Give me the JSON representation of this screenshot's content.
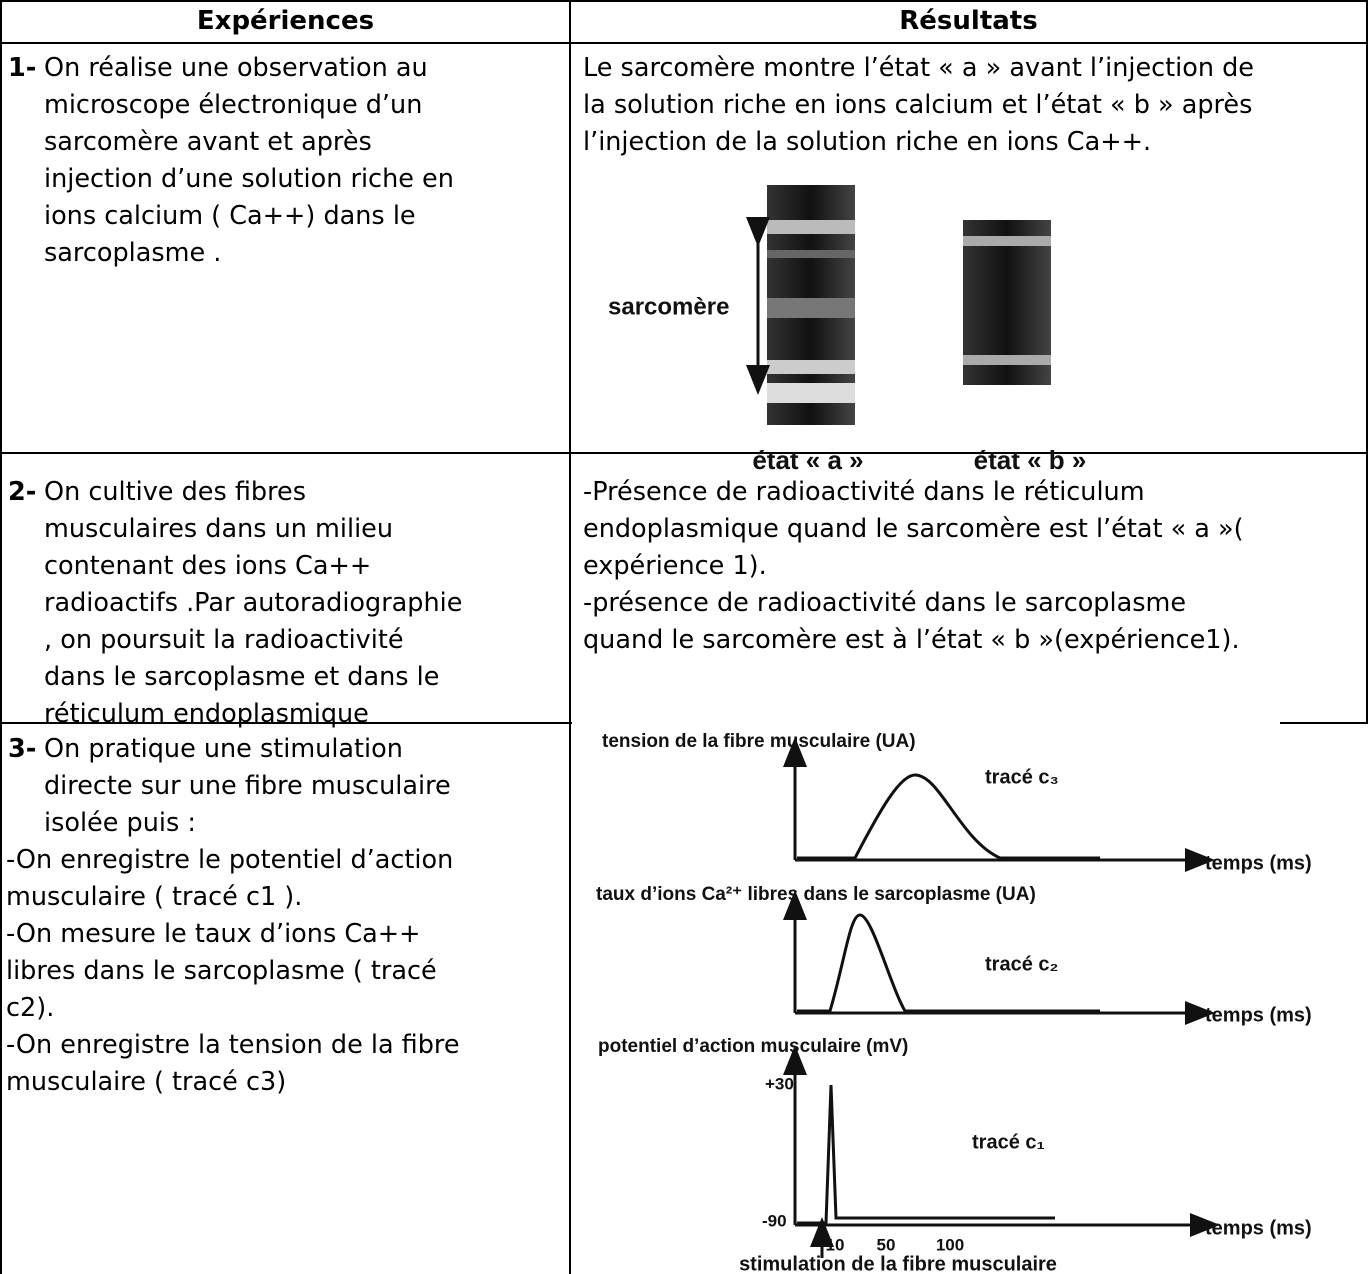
{
  "table": {
    "headers": [
      "Expériences",
      "Résultats"
    ],
    "rows": [
      {
        "experience": {
          "number": "1-",
          "lines": [
            "On réalise une observation au",
            "microscope électronique d’un",
            "sarcomère avant et après",
            "injection d’une solution riche en",
            "ions calcium ( Ca++) dans le",
            "sarcoplasme ."
          ],
          "extra_lines": []
        },
        "result": {
          "lines": [
            "Le sarcomère montre l’état « a » avant l’injection de",
            "la solution riche en ions calcium et l’état « b » après",
            "l’injection de la solution riche en ions Ca++."
          ],
          "figure": {
            "label": "sarcomère",
            "states": [
              "état « a »",
              "état « b »"
            ]
          }
        }
      },
      {
        "experience": {
          "number": "2-",
          "lines": [
            "On cultive des fibres",
            "musculaires dans un milieu",
            "contenant des ions Ca++",
            "radioactifs .Par autoradiographie",
            ", on poursuit la radioactivité",
            "dans le sarcoplasme et dans le",
            "réticulum endoplasmique"
          ],
          "extra_lines": []
        },
        "result": {
          "lines": [
            "-Présence de radioactivité dans le réticulum",
            "endoplasmique quand le sarcomère est l’état « a »(",
            "expérience 1).",
            "-présence de radioactivité dans le sarcoplasme",
            "quand le sarcomère est à l’état « b »(expérience1)."
          ]
        }
      },
      {
        "experience": {
          "number": "3-",
          "lines": [
            "On pratique une stimulation",
            "directe sur une fibre musculaire",
            "isolée puis :"
          ],
          "extra_lines": [
            "-On enregistre le potentiel d’action",
            "musculaire ( tracé c1 ).",
            "-On mesure le taux d’ions Ca++",
            "libres dans le sarcoplasme ( tracé",
            "c2).",
            "-On enregistre la tension de la fibre",
            "musculaire ( tracé c3)"
          ]
        },
        "result": {
          "lines": [],
          "graphs": [
            {
              "title": "tension de la fibre musculaire (UA)",
              "trace": "tracé c₃",
              "x_label": "temps (ms)"
            },
            {
              "title": "taux d’ions Ca²⁺ libres dans le sarcoplasme (UA)",
              "trace": "tracé c₂",
              "x_label": "temps (ms)"
            },
            {
              "title": "potentiel d’action musculaire (mV)",
              "trace": "tracé c₁",
              "x_label": "temps (ms)"
            }
          ],
          "y_ticks": [
            "+30",
            "-90"
          ],
          "x_ticks": [
            "10",
            "50",
            "100"
          ],
          "caption": "stimulation de la fibre musculaire"
        }
      }
    ]
  }
}
